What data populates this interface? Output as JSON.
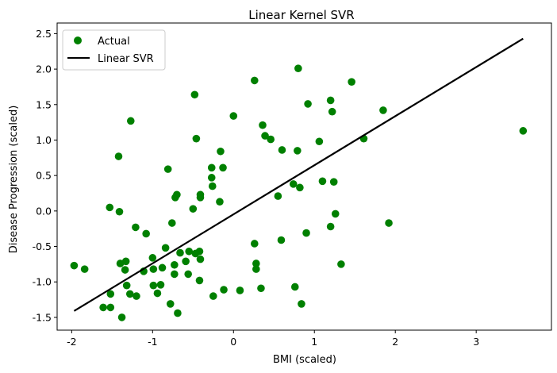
{
  "chart_data": {
    "type": "scatter",
    "title": "Linear Kernel SVR",
    "xlabel": "BMI (scaled)",
    "ylabel": "Disease Progression (scaled)",
    "xlim": [
      -2.18,
      3.93
    ],
    "ylim": [
      -1.68,
      2.65
    ],
    "xticks": [
      -2,
      -1,
      0,
      1,
      2,
      3
    ],
    "yticks": [
      -1.5,
      -1.0,
      -0.5,
      0.0,
      0.5,
      1.0,
      1.5,
      2.0,
      2.5
    ],
    "grid": false,
    "legend_position": "top-left",
    "colors": {
      "actual": "#008000",
      "svr": "#000000"
    },
    "series": [
      {
        "name": "Actual",
        "kind": "scatter",
        "points": [
          [
            -1.97,
            -0.77
          ],
          [
            -1.84,
            -0.82
          ],
          [
            -1.61,
            -1.36
          ],
          [
            -1.53,
            0.05
          ],
          [
            -1.52,
            -1.17
          ],
          [
            -1.52,
            -1.36
          ],
          [
            -1.42,
            0.77
          ],
          [
            -1.41,
            -0.01
          ],
          [
            -1.4,
            -0.74
          ],
          [
            -1.38,
            -1.5
          ],
          [
            -1.34,
            -0.83
          ],
          [
            -1.33,
            -0.71
          ],
          [
            -1.32,
            -1.05
          ],
          [
            -1.28,
            -1.17
          ],
          [
            -1.27,
            1.27
          ],
          [
            -1.21,
            -0.23
          ],
          [
            -1.2,
            -1.2
          ],
          [
            -1.11,
            -0.85
          ],
          [
            -1.08,
            -0.32
          ],
          [
            -1.0,
            -0.66
          ],
          [
            -0.99,
            -0.82
          ],
          [
            -0.99,
            -1.05
          ],
          [
            -0.94,
            -1.16
          ],
          [
            -0.9,
            -1.04
          ],
          [
            -0.88,
            -0.8
          ],
          [
            -0.84,
            -0.52
          ],
          [
            -0.81,
            0.59
          ],
          [
            -0.78,
            -1.31
          ],
          [
            -0.76,
            -0.17
          ],
          [
            -0.73,
            -0.76
          ],
          [
            -0.73,
            -0.89
          ],
          [
            -0.72,
            0.19
          ],
          [
            -0.7,
            0.23
          ],
          [
            -0.69,
            -1.44
          ],
          [
            -0.66,
            -0.59
          ],
          [
            -0.59,
            -0.71
          ],
          [
            -0.56,
            -0.89
          ],
          [
            -0.55,
            -0.57
          ],
          [
            -0.5,
            0.03
          ],
          [
            -0.48,
            1.64
          ],
          [
            -0.47,
            -0.6
          ],
          [
            -0.46,
            1.02
          ],
          [
            -0.42,
            -0.57
          ],
          [
            -0.42,
            -0.98
          ],
          [
            -0.41,
            0.19
          ],
          [
            -0.41,
            0.23
          ],
          [
            -0.41,
            -0.68
          ],
          [
            -0.27,
            0.61
          ],
          [
            -0.27,
            0.47
          ],
          [
            -0.26,
            0.35
          ],
          [
            -0.25,
            -1.2
          ],
          [
            -0.17,
            0.13
          ],
          [
            -0.16,
            0.84
          ],
          [
            -0.13,
            0.61
          ],
          [
            -0.12,
            -1.11
          ],
          [
            0.0,
            1.34
          ],
          [
            0.08,
            -1.12
          ],
          [
            0.26,
            -0.46
          ],
          [
            0.26,
            1.84
          ],
          [
            0.28,
            -0.74
          ],
          [
            0.28,
            -0.82
          ],
          [
            0.34,
            -1.09
          ],
          [
            0.36,
            1.21
          ],
          [
            0.39,
            1.06
          ],
          [
            0.46,
            1.01
          ],
          [
            0.55,
            0.21
          ],
          [
            0.59,
            -0.41
          ],
          [
            0.6,
            0.86
          ],
          [
            0.74,
            0.38
          ],
          [
            0.76,
            -1.07
          ],
          [
            0.79,
            0.85
          ],
          [
            0.8,
            2.01
          ],
          [
            0.82,
            0.33
          ],
          [
            0.84,
            -1.31
          ],
          [
            0.9,
            -0.31
          ],
          [
            0.92,
            1.51
          ],
          [
            1.06,
            0.98
          ],
          [
            1.1,
            0.42
          ],
          [
            1.2,
            -0.22
          ],
          [
            1.2,
            1.56
          ],
          [
            1.22,
            1.4
          ],
          [
            1.24,
            0.41
          ],
          [
            1.26,
            -0.04
          ],
          [
            1.33,
            -0.75
          ],
          [
            1.46,
            1.82
          ],
          [
            1.61,
            1.02
          ],
          [
            1.85,
            1.42
          ],
          [
            1.92,
            -0.17
          ],
          [
            3.58,
            1.13
          ]
        ]
      },
      {
        "name": "Linear SVR",
        "kind": "line",
        "points": [
          [
            -1.97,
            -1.41
          ],
          [
            3.58,
            2.43
          ]
        ]
      }
    ]
  }
}
